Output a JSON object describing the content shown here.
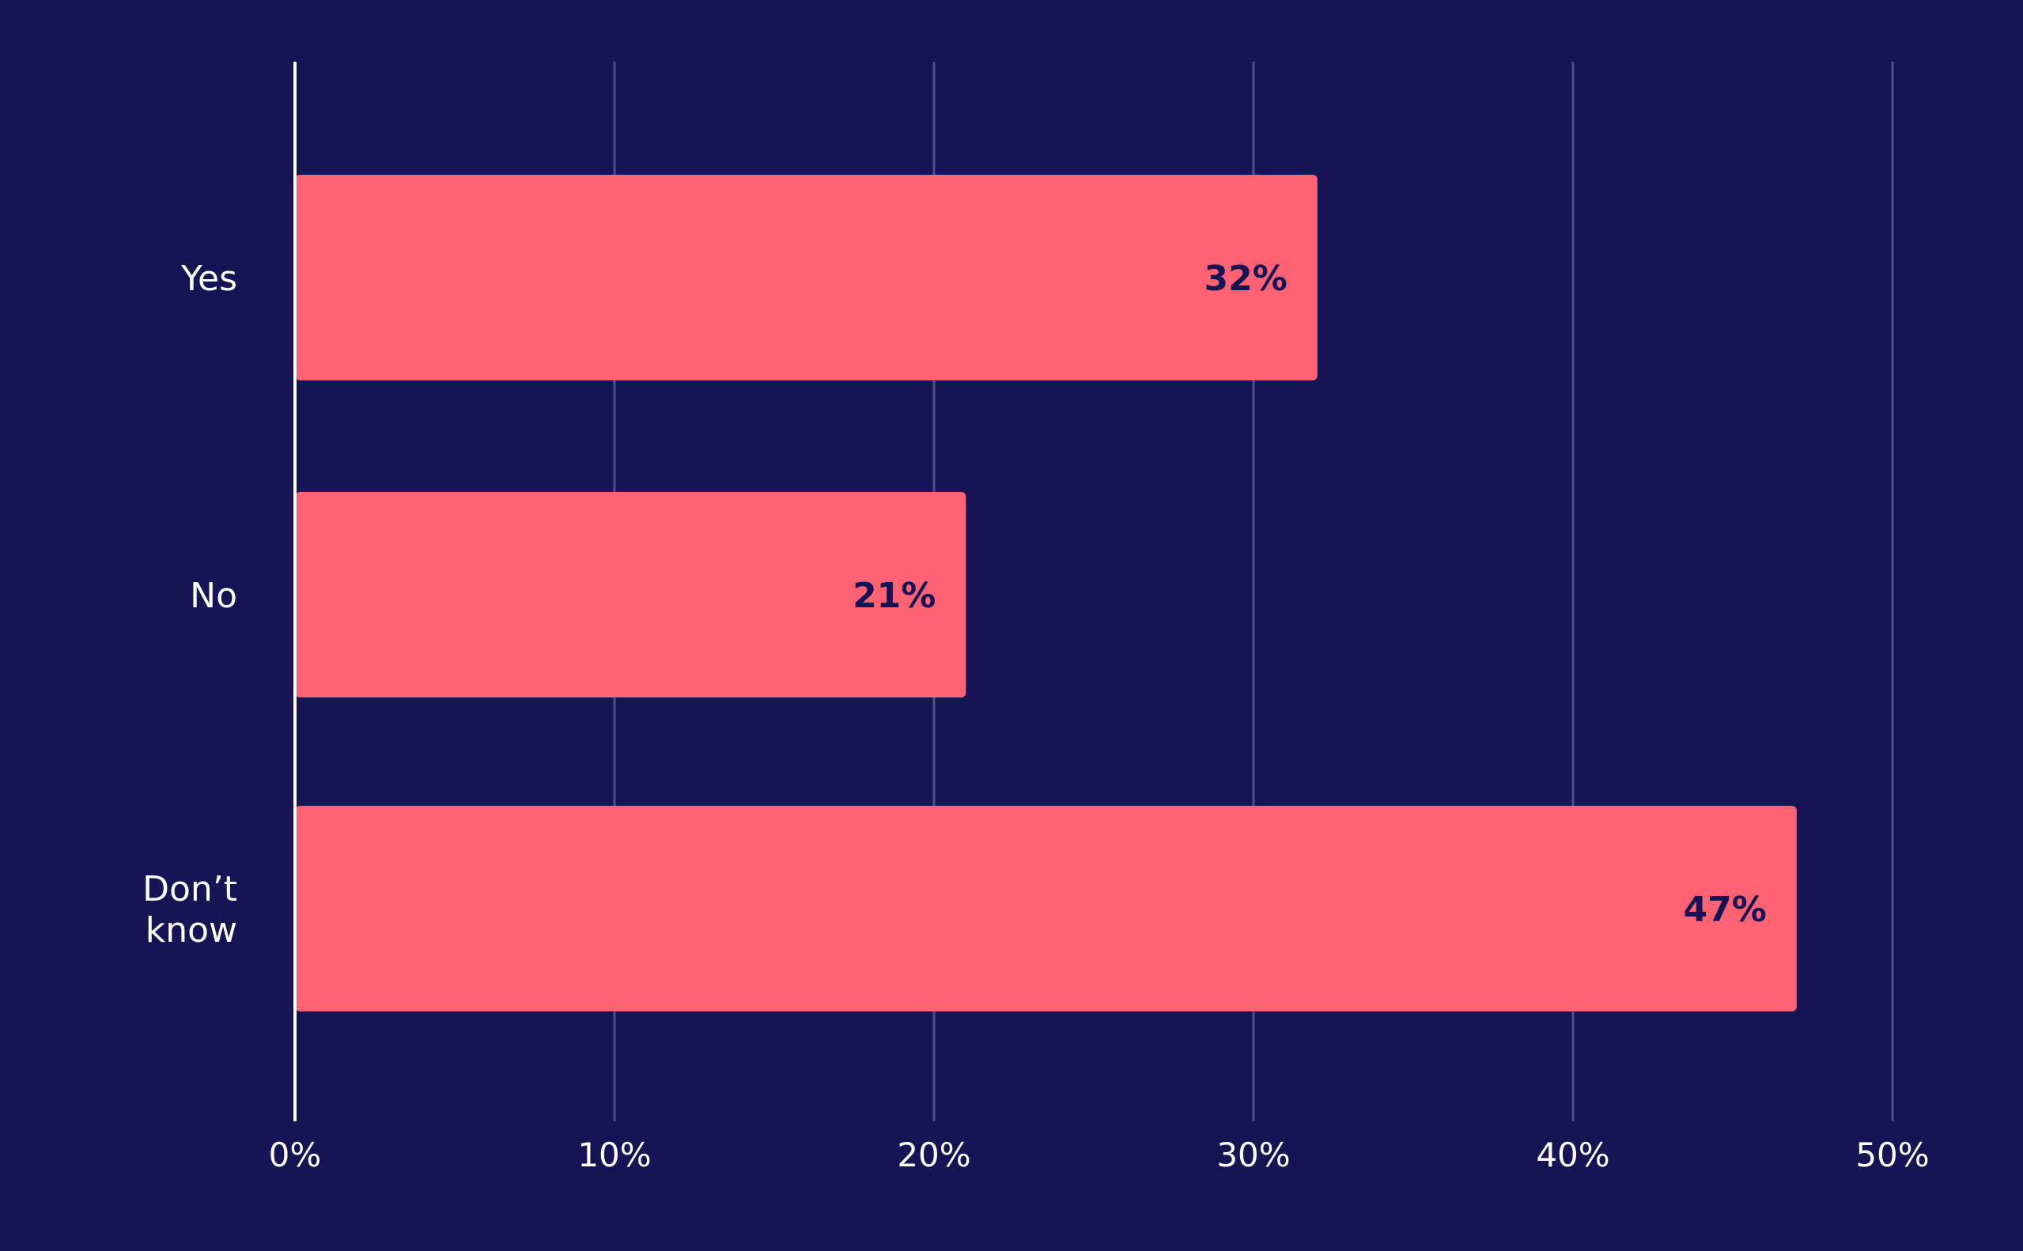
{
  "colors": {
    "background": "#161455",
    "bar": "#FF6272",
    "grid": "#4E4F86",
    "axis": "#FFFFFF",
    "text": "#FFFFFF",
    "value_text": "#161455"
  },
  "chart_data": {
    "type": "bar",
    "orientation": "horizontal",
    "title": "",
    "xlabel": "",
    "ylabel": "",
    "xlim": [
      0,
      50
    ],
    "grid": true,
    "categories": [
      [
        "Yes"
      ],
      [
        "No"
      ],
      [
        "Don’t",
        "know"
      ]
    ],
    "values": [
      32,
      21,
      47
    ],
    "value_labels": [
      "32%",
      "21%",
      "47%"
    ],
    "ticks": [
      {
        "value": 0,
        "label": "0%"
      },
      {
        "value": 10,
        "label": "10%"
      },
      {
        "value": 20,
        "label": "20%"
      },
      {
        "value": 30,
        "label": "30%"
      },
      {
        "value": 40,
        "label": "40%"
      },
      {
        "value": 50,
        "label": "50%"
      }
    ]
  }
}
